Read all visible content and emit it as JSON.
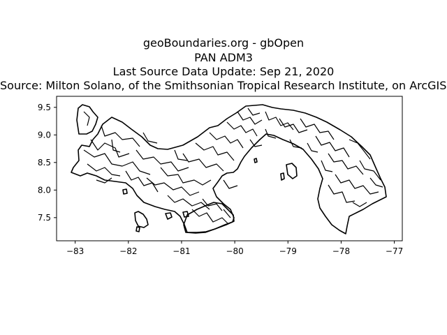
{
  "figure": {
    "title_lines": [
      "geoBoundaries.org - gbOpen",
      "PAN ADM3",
      "Last Source Data Update: Sep 21, 2020",
      "Source: Milton Solano, of the Smithsonian Tropical Research Institute, on ArcGIS online"
    ]
  },
  "map": {
    "country": "PAN",
    "admin_level": "ADM3",
    "boundary_color": "#000000",
    "background_color": "#ffffff"
  },
  "axes": {
    "x_ticks": [
      -83,
      -82,
      -81,
      -80,
      -79,
      -78,
      -77
    ],
    "x_tick_labels": [
      "−83",
      "−82",
      "−81",
      "−80",
      "−79",
      "−78",
      "−77"
    ],
    "y_ticks": [
      7.5,
      8.0,
      8.5,
      9.0,
      9.5
    ],
    "y_tick_labels": [
      "7.5",
      "8.0",
      "8.5",
      "9.0",
      "9.5"
    ],
    "xlim": [
      -83.35,
      -76.85
    ],
    "ylim": [
      7.08,
      9.7
    ]
  }
}
